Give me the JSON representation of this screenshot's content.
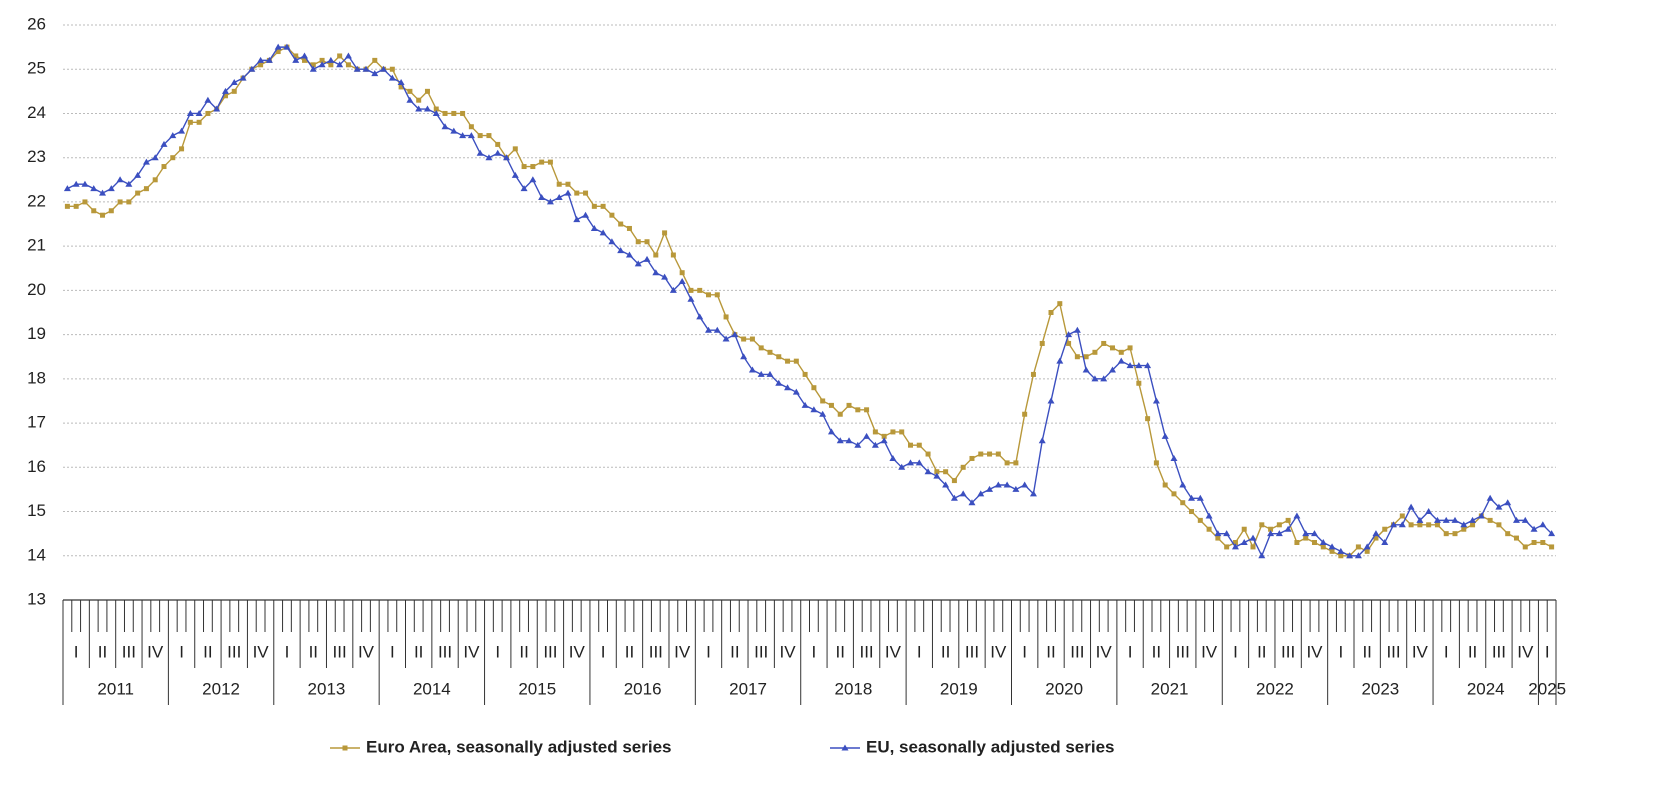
{
  "chart_data": {
    "type": "line",
    "ylim": [
      13,
      26
    ],
    "yticks": [
      13,
      14,
      15,
      16,
      17,
      18,
      19,
      20,
      21,
      22,
      23,
      24,
      25,
      26
    ],
    "grid": true,
    "years": [
      "2011",
      "2012",
      "2013",
      "2014",
      "2015",
      "2016",
      "2017",
      "2018",
      "2019",
      "2020",
      "2021",
      "2022",
      "2023",
      "2024",
      "2025"
    ],
    "quarters": [
      "I",
      "II",
      "III",
      "IV"
    ],
    "legend": "bottom",
    "series": [
      {
        "name": "Euro Area, seasonally adjusted series",
        "color": "#b8983a",
        "marker": "square",
        "values": [
          21.9,
          21.9,
          22.0,
          21.8,
          21.7,
          21.8,
          22.0,
          22.0,
          22.2,
          22.3,
          22.5,
          22.8,
          23.0,
          23.2,
          23.8,
          23.8,
          24.0,
          24.1,
          24.4,
          24.5,
          24.8,
          25.0,
          25.1,
          25.2,
          25.4,
          25.5,
          25.3,
          25.2,
          25.1,
          25.2,
          25.1,
          25.3,
          25.1,
          25.0,
          25.0,
          25.2,
          25.0,
          25.0,
          24.6,
          24.5,
          24.3,
          24.5,
          24.1,
          24.0,
          24.0,
          24.0,
          23.7,
          23.5,
          23.5,
          23.3,
          23.0,
          23.2,
          22.8,
          22.8,
          22.9,
          22.9,
          22.4,
          22.4,
          22.2,
          22.2,
          21.9,
          21.9,
          21.7,
          21.5,
          21.4,
          21.1,
          21.1,
          20.8,
          21.3,
          20.8,
          20.4,
          20.0,
          20.0,
          19.9,
          19.9,
          19.4,
          19.0,
          18.9,
          18.9,
          18.7,
          18.6,
          18.5,
          18.4,
          18.4,
          18.1,
          17.8,
          17.5,
          17.4,
          17.2,
          17.4,
          17.3,
          17.3,
          16.8,
          16.7,
          16.8,
          16.8,
          16.5,
          16.5,
          16.3,
          15.9,
          15.9,
          15.7,
          16.0,
          16.2,
          16.3,
          16.3,
          16.3,
          16.1,
          16.1,
          17.2,
          18.1,
          18.8,
          19.5,
          19.7,
          18.8,
          18.5,
          18.5,
          18.6,
          18.8,
          18.7,
          18.6,
          18.7,
          17.9,
          17.1,
          16.1,
          15.6,
          15.4,
          15.2,
          15.0,
          14.8,
          14.6,
          14.4,
          14.2,
          14.3,
          14.6,
          14.2,
          14.7,
          14.6,
          14.7,
          14.8,
          14.3,
          14.4,
          14.3,
          14.2,
          14.1,
          14.0,
          14.0,
          14.2,
          14.1,
          14.4,
          14.6,
          14.7,
          14.9,
          14.7,
          14.7,
          14.7,
          14.7,
          14.5,
          14.5,
          14.6,
          14.7,
          14.9,
          14.8,
          14.7,
          14.5,
          14.4,
          14.2,
          14.3,
          14.3,
          14.2
        ]
      },
      {
        "name": "EU, seasonally adjusted series",
        "color": "#3b4fc0",
        "marker": "triangle",
        "values": [
          22.3,
          22.4,
          22.4,
          22.3,
          22.2,
          22.3,
          22.5,
          22.4,
          22.6,
          22.9,
          23.0,
          23.3,
          23.5,
          23.6,
          24.0,
          24.0,
          24.3,
          24.1,
          24.5,
          24.7,
          24.8,
          25.0,
          25.2,
          25.2,
          25.5,
          25.5,
          25.2,
          25.3,
          25.0,
          25.1,
          25.2,
          25.1,
          25.3,
          25.0,
          25.0,
          24.9,
          25.0,
          24.8,
          24.7,
          24.3,
          24.1,
          24.1,
          24.0,
          23.7,
          23.6,
          23.5,
          23.5,
          23.1,
          23.0,
          23.1,
          23.0,
          22.6,
          22.3,
          22.5,
          22.1,
          22.0,
          22.1,
          22.2,
          21.6,
          21.7,
          21.4,
          21.3,
          21.1,
          20.9,
          20.8,
          20.6,
          20.7,
          20.4,
          20.3,
          20.0,
          20.2,
          19.8,
          19.4,
          19.1,
          19.1,
          18.9,
          19.0,
          18.5,
          18.2,
          18.1,
          18.1,
          17.9,
          17.8,
          17.7,
          17.4,
          17.3,
          17.2,
          16.8,
          16.6,
          16.6,
          16.5,
          16.7,
          16.5,
          16.6,
          16.2,
          16.0,
          16.1,
          16.1,
          15.9,
          15.8,
          15.6,
          15.3,
          15.4,
          15.2,
          15.4,
          15.5,
          15.6,
          15.6,
          15.5,
          15.6,
          15.4,
          16.6,
          17.5,
          18.4,
          19.0,
          19.1,
          18.2,
          18.0,
          18.0,
          18.2,
          18.4,
          18.3,
          18.3,
          18.3,
          17.5,
          16.7,
          16.2,
          15.6,
          15.3,
          15.3,
          14.9,
          14.5,
          14.5,
          14.2,
          14.3,
          14.4,
          14.0,
          14.5,
          14.5,
          14.6,
          14.9,
          14.5,
          14.5,
          14.3,
          14.2,
          14.1,
          14.0,
          14.0,
          14.2,
          14.5,
          14.3,
          14.7,
          14.7,
          15.1,
          14.8,
          15.0,
          14.8,
          14.8,
          14.8,
          14.7,
          14.8,
          14.9,
          15.3,
          15.1,
          15.2,
          14.8,
          14.8,
          14.6,
          14.7,
          14.5
        ]
      }
    ]
  }
}
